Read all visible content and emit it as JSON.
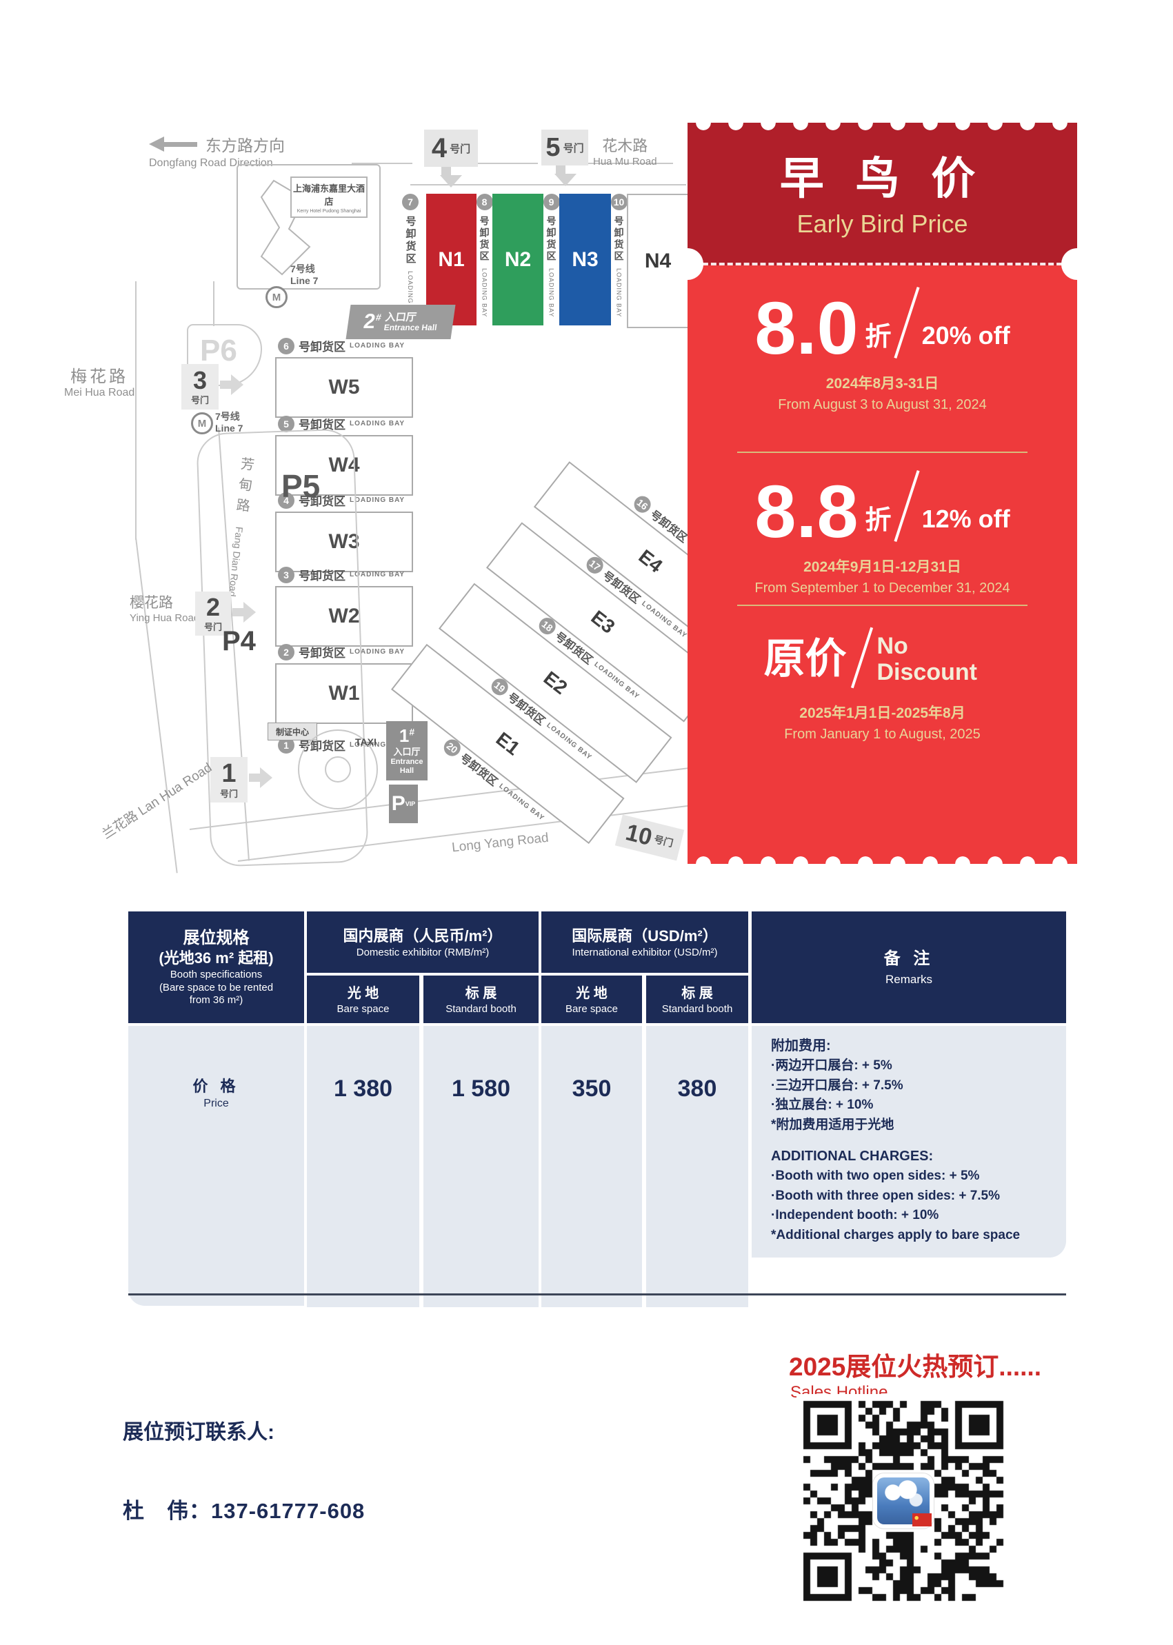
{
  "colors": {
    "coupon_header": "#b01f2a",
    "coupon_body": "#ee3a3c",
    "gold": "#e9d498",
    "navy": "#1c2b56",
    "table_cell": "#e4e9f0",
    "accent_red": "#ce2a28",
    "hall_n1": "#c3242d",
    "hall_n2": "#2f9e5c",
    "hall_n3": "#1e5ba7"
  },
  "map": {
    "direction_zh": "东方路方向",
    "direction_en": "Dongfang Road Direction",
    "hotel_zh": "上海浦东嘉里大酒店",
    "hotel_en": "Kerry Hotel Pudong Shanghai",
    "metro_zh": "7号线",
    "metro_en": "Line 7",
    "metro_m": "M",
    "road_huamu_zh": "花木路",
    "road_huamu_en": "Hua Mu Road",
    "road_meihua_zh": "梅花路",
    "road_meihua_en": "Mei Hua Road",
    "road_fangdian_zh": "芳甸路",
    "road_fangdian_en": "Fang Dian Road",
    "road_yinghua_zh": "樱花路",
    "road_yinghua_en": "Ying Hua Road",
    "road_lanhua": "兰花路 Lan Hua Road",
    "road_longyang": "Long Yang Road",
    "gate_suffix": "号门",
    "gate4": "4",
    "gate5": "5",
    "gate3": "3",
    "gate2": "2",
    "gate1": "1",
    "gate10": "10",
    "p6": "P6",
    "p5": "P5",
    "p4": "P4",
    "entrance2_num": "2",
    "entrance1_num": "1",
    "entrance_hash": "#",
    "entrance_zh": "入口厅",
    "entrance_en": "Entrance Hall",
    "badge_center": "制证中心",
    "taxi": "TAXI",
    "p_vip": "P",
    "vip": "VIP",
    "loading_zh": "号卸货区",
    "loading_en": "LOADING BAY",
    "bays_n": [
      "7",
      "8",
      "9",
      "10"
    ],
    "bays_w": [
      "6",
      "5",
      "4",
      "3",
      "2",
      "1"
    ],
    "bays_e": [
      "16",
      "17",
      "18",
      "19",
      "20"
    ],
    "halls_n": [
      "N1",
      "N2",
      "N3",
      "N4"
    ],
    "halls_w": [
      "W5",
      "W4",
      "W3",
      "W2",
      "W1"
    ],
    "halls_e": [
      "E4",
      "E3",
      "E2",
      "E1"
    ]
  },
  "coupon": {
    "title_zh": "早 鸟 价",
    "title_en": "Early Bird Price",
    "tiers": [
      {
        "big": "8.0",
        "unit": "折",
        "off": "20% off",
        "date_zh": "2024年8月3-31日",
        "date_en": "From August 3 to August 31, 2024"
      },
      {
        "big": "8.8",
        "unit": "折",
        "off": "12% off",
        "date_zh": "2024年9月1日-12月31日",
        "date_en": "From September 1 to December 31, 2024"
      },
      {
        "big": "原价",
        "unit": "",
        "off": "No Discount",
        "date_zh": "2025年1月1日-2025年8月",
        "date_en": "From January 1 to August, 2025"
      }
    ]
  },
  "table": {
    "spec_l1": "展位规格",
    "spec_l2": "(光地36 m² 起租)",
    "spec_l3": "Booth specifications",
    "spec_l4": "(Bare space to be rented",
    "spec_l5": "from 36 m²)",
    "group_dom_zh": "国内展商（人民币/m²）",
    "group_dom_en": "Domestic exhibitor (RMB/m²)",
    "group_intl_zh": "国际展商（USD/m²）",
    "group_intl_en": "International exhibitor (USD/m²)",
    "bare_zh": "光 地",
    "bare_en": "Bare space",
    "std_zh": "标 展",
    "std_en": "Standard booth",
    "remarks_zh": "备 注",
    "remarks_en": "Remarks",
    "row_zh": "价 格",
    "row_en": "Price",
    "values": [
      "1 380",
      "1 580",
      "350",
      "380"
    ],
    "remarks_cn": [
      "附加费用:",
      "·两边开口展台: + 5%",
      "·三边开口展台: + 7.5%",
      "·独立展台: + 10%",
      "*附加费用适用于光地"
    ],
    "remarks_en_lines": [
      "ADDITIONAL CHARGES:",
      "·Booth with two open sides: + 5%",
      "·Booth with three open sides: + 7.5%",
      "·Independent booth: + 10%",
      "*Additional charges apply to bare space"
    ]
  },
  "footer": {
    "hotline_zh": "2025展位火热预订......",
    "hotline_en": "Sales Hotline",
    "contact_label": "展位预订联系人:",
    "contact_name": "杜　伟：137-61777-608"
  }
}
